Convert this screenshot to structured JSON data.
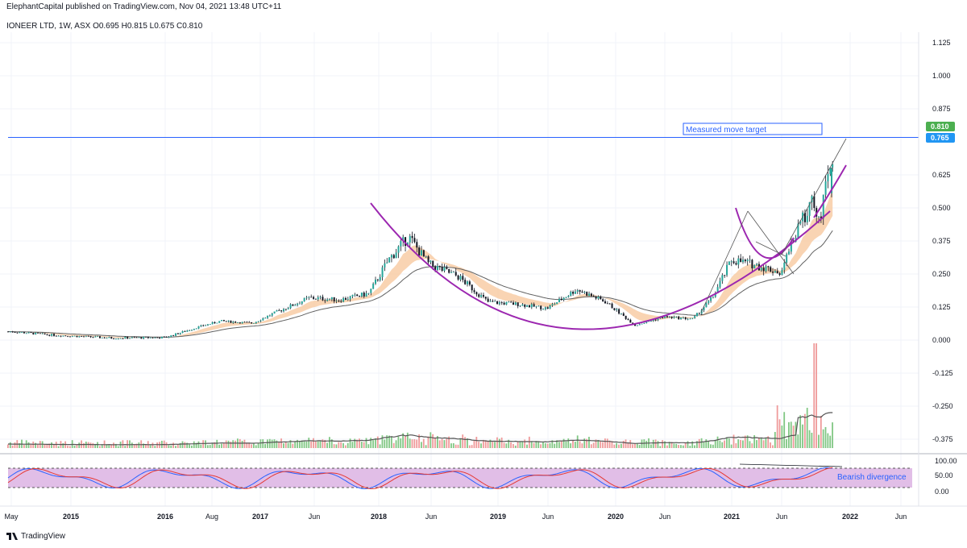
{
  "header": {
    "published_line": "ElephantCapital published on TradingView.com, Nov 04, 2021 13:48 UTC+11",
    "symbol_line": "IONEER LTD, 1W, ASX  O0.695  H0.815  L0.675  C0.810"
  },
  "branding": {
    "label": "TradingView"
  },
  "colors": {
    "up": "#26a69a",
    "down": "#131722",
    "cup": "#9c27b0",
    "ma_band": "#f7c9a0",
    "ma_line": "#616161",
    "target_line": "#2962ff",
    "last_badge": "#4caf50",
    "target_badge": "#2196f3",
    "stoch_fill": "#e1bee7",
    "stoch_k": "#2962ff",
    "stoch_d": "#e53935",
    "volume_up": "#81c784",
    "volume_down": "#ef9a9a"
  },
  "chart_data": {
    "type": "candlestick",
    "price_axis": {
      "ticks": [
        "1.125",
        "1.000",
        "0.875",
        "0.625",
        "0.500",
        "0.375",
        "0.250",
        "0.125",
        "0.000",
        "-0.125",
        "-0.250",
        "-0.375"
      ],
      "last_price": "0.810",
      "target_price": "0.765"
    },
    "time_axis": {
      "labels": [
        {
          "text": "May",
          "bold": false
        },
        {
          "text": "2015",
          "bold": true
        },
        {
          "text": "2016",
          "bold": true
        },
        {
          "text": "Aug",
          "bold": false
        },
        {
          "text": "2017",
          "bold": true
        },
        {
          "text": "Jun",
          "bold": false
        },
        {
          "text": "2018",
          "bold": true
        },
        {
          "text": "Jun",
          "bold": false
        },
        {
          "text": "2019",
          "bold": true
        },
        {
          "text": "Jun",
          "bold": false
        },
        {
          "text": "2020",
          "bold": true
        },
        {
          "text": "Jun",
          "bold": false
        },
        {
          "text": "2021",
          "bold": true
        },
        {
          "text": "Jun",
          "bold": false
        },
        {
          "text": "2022",
          "bold": true
        },
        {
          "text": "Jun",
          "bold": false
        }
      ]
    },
    "annotations": {
      "target_box": "Measured move target",
      "divergence": "Bearish divergence"
    },
    "oscillator_axis": {
      "ticks": [
        "100.00",
        "50.00",
        "0.00"
      ]
    },
    "close_path": [
      {
        "date": "2014-05",
        "close": 0.04
      },
      {
        "date": "2014-10",
        "close": 0.025
      },
      {
        "date": "2015-06",
        "close": 0.01
      },
      {
        "date": "2016-01",
        "close": 0.012
      },
      {
        "date": "2016-05",
        "close": 0.06
      },
      {
        "date": "2016-08",
        "close": 0.09
      },
      {
        "date": "2016-12",
        "close": 0.08
      },
      {
        "date": "2017-03",
        "close": 0.14
      },
      {
        "date": "2017-06",
        "close": 0.2
      },
      {
        "date": "2017-09",
        "close": 0.19
      },
      {
        "date": "2017-12",
        "close": 0.22
      },
      {
        "date": "2018-02",
        "close": 0.38
      },
      {
        "date": "2018-04",
        "close": 0.49
      },
      {
        "date": "2018-06",
        "close": 0.36
      },
      {
        "date": "2018-09",
        "close": 0.3
      },
      {
        "date": "2018-12",
        "close": 0.18
      },
      {
        "date": "2019-03",
        "close": 0.17
      },
      {
        "date": "2019-06",
        "close": 0.15
      },
      {
        "date": "2019-09",
        "close": 0.24
      },
      {
        "date": "2019-12",
        "close": 0.18
      },
      {
        "date": "2020-03",
        "close": 0.07
      },
      {
        "date": "2020-06",
        "close": 0.11
      },
      {
        "date": "2020-09",
        "close": 0.1
      },
      {
        "date": "2020-11",
        "close": 0.2
      },
      {
        "date": "2021-01",
        "close": 0.38
      },
      {
        "date": "2021-03",
        "close": 0.36
      },
      {
        "date": "2021-06",
        "close": 0.32
      },
      {
        "date": "2021-07",
        "close": 0.45
      },
      {
        "date": "2021-09",
        "close": 0.65
      },
      {
        "date": "2021-10",
        "close": 0.6
      },
      {
        "date": "2021-11",
        "close": 0.81
      }
    ]
  }
}
